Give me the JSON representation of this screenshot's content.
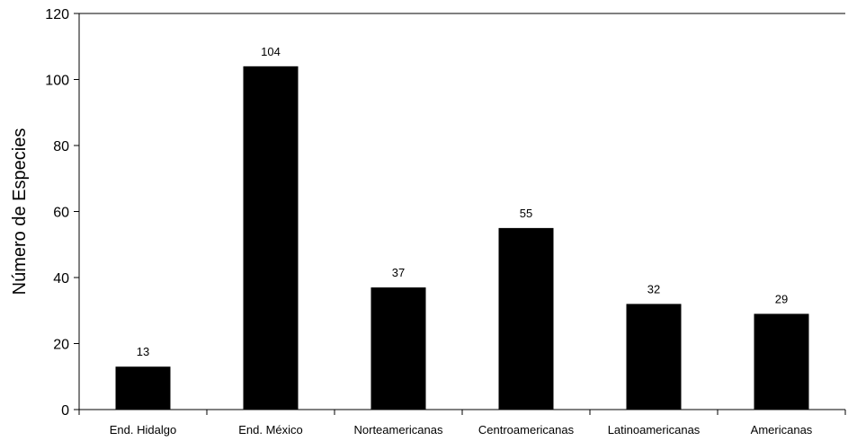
{
  "chart_data": {
    "type": "bar",
    "title": "",
    "xlabel": "",
    "ylabel": "Número de Especies",
    "ylim": [
      0,
      120
    ],
    "yticks": [
      0,
      20,
      40,
      60,
      80,
      100,
      120
    ],
    "grid": false,
    "legend": "none",
    "categories": [
      "End. Hidalgo",
      "End. México",
      "Norteamericanas",
      "Centroamericanas",
      "Latinoamericanas",
      "Americanas"
    ],
    "values": [
      13,
      104,
      37,
      55,
      32,
      29
    ],
    "bar_color": "#000000"
  }
}
